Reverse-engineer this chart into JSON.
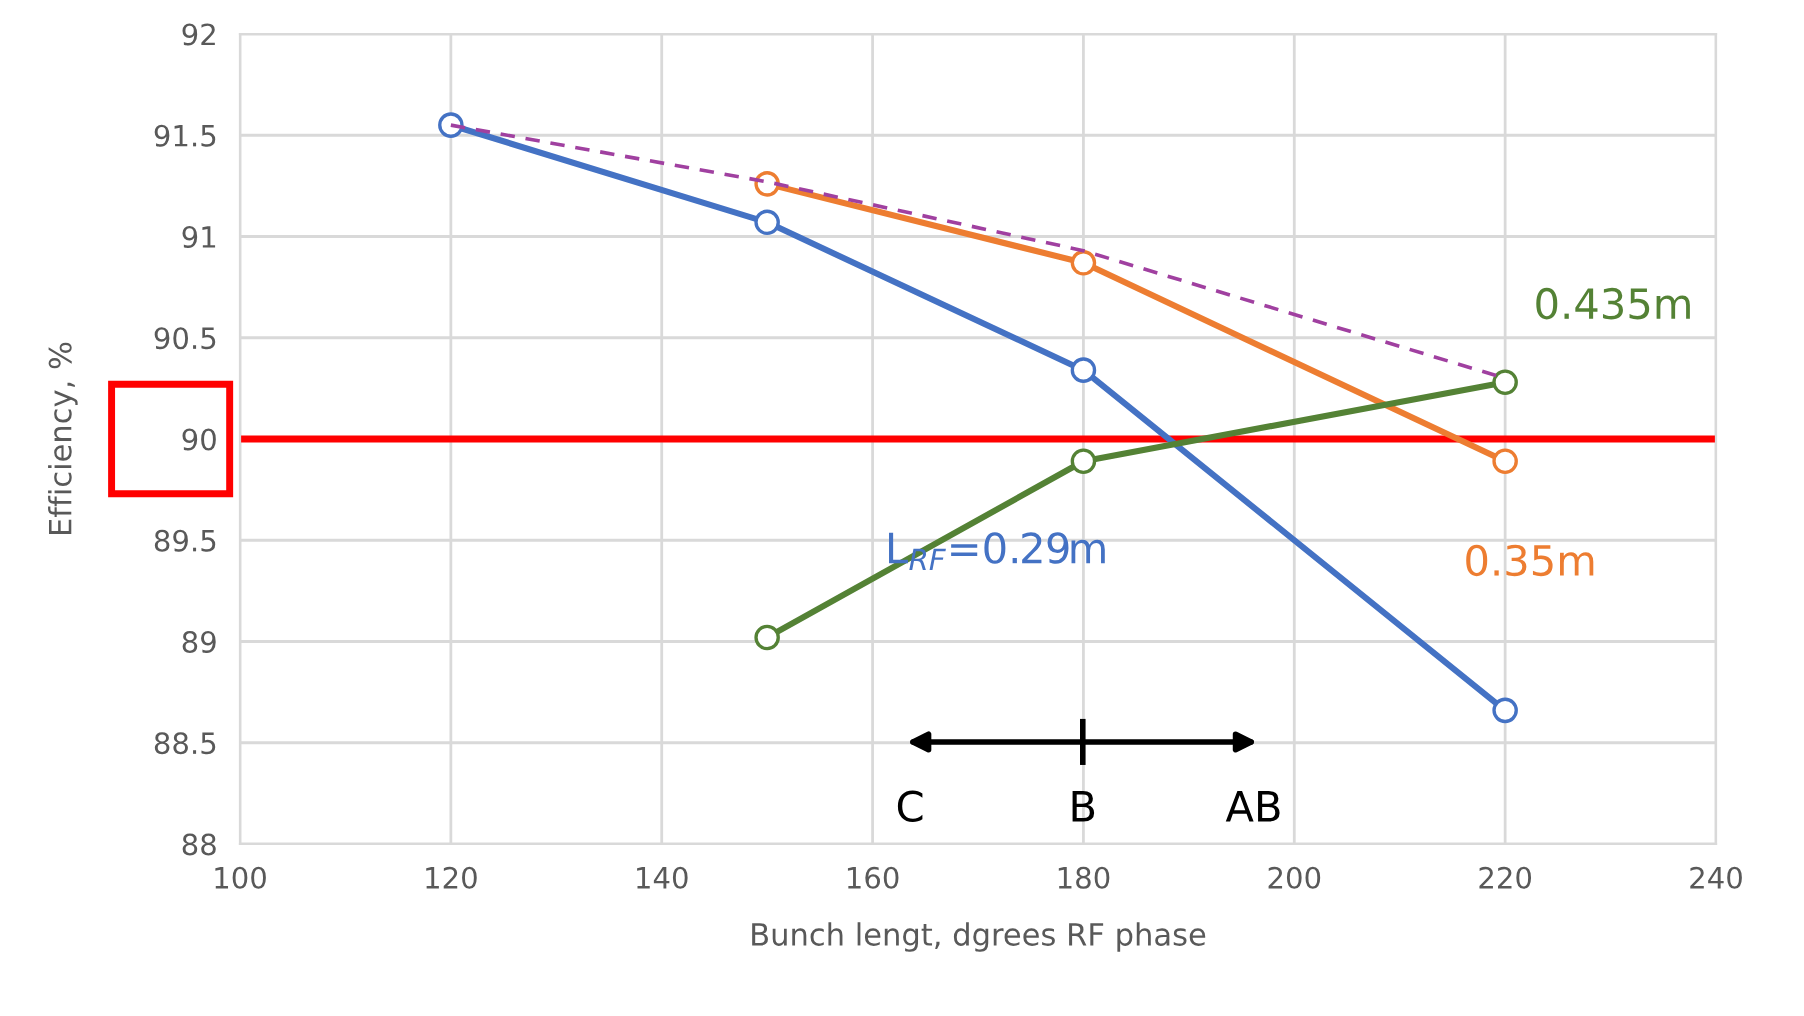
{
  "chart_data": {
    "type": "line",
    "xlabel": "Bunch lengt, dgrees RF phase",
    "ylabel": "Efficiency, %",
    "xlim": [
      100,
      240
    ],
    "xticks": [
      100,
      120,
      140,
      160,
      180,
      200,
      220,
      240
    ],
    "ylim": [
      88,
      92
    ],
    "yticks": [
      88,
      {
        "value": 88.5,
        "label": "88.5"
      },
      89,
      {
        "value": 89.5,
        "label": "89.5"
      },
      90,
      {
        "value": 90.5,
        "label": "90.5"
      },
      91,
      {
        "value": 91.5,
        "label": "91.5"
      },
      92
    ],
    "grid": true,
    "legend": false,
    "marker": "circle",
    "series": [
      {
        "name": "L$_{RF}$=0.29m",
        "color": "#4472c4",
        "x": [
          120,
          150,
          180,
          220
        ],
        "values": [
          91.55,
          91.07,
          90.34,
          88.66
        ]
      },
      {
        "name": "0.35m",
        "color": "#ed7d31",
        "x": [
          150,
          180,
          220
        ],
        "values": [
          91.26,
          90.87,
          89.89
        ]
      },
      {
        "name": "0.435m",
        "color": "#548235",
        "x": [
          150,
          180,
          220
        ],
        "values": [
          89.02,
          89.89,
          90.28
        ]
      },
      {
        "color": "#a040a0",
        "x": [
          120,
          150,
          180,
          220
        ],
        "values": [
          91.55,
          91.27,
          90.93,
          90.3
        ],
        "marker": "none",
        "line_style": "dashed"
      }
    ],
    "ref_lines": [
      {
        "axis": "y",
        "value": 90,
        "color": "#ff0000"
      }
    ],
    "annotations": [
      "C",
      "B",
      "AB"
    ]
  }
}
